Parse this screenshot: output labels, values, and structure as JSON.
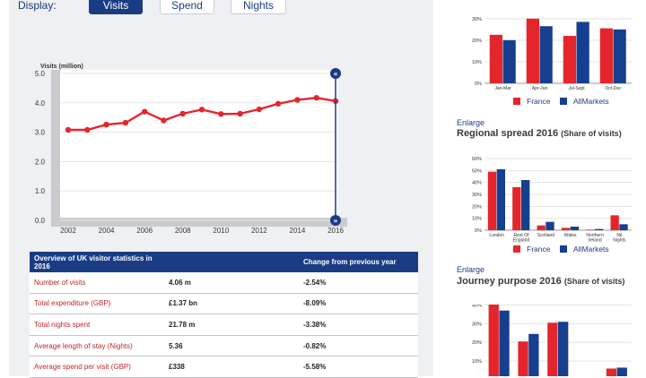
{
  "display": {
    "label": "Display:",
    "tabs": [
      {
        "label": "Visits",
        "active": true
      },
      {
        "label": "Spend",
        "active": false
      },
      {
        "label": "Nights",
        "active": false
      }
    ]
  },
  "chart_data": [
    {
      "type": "line",
      "ylabel": "Visits (million)",
      "x": [
        2002,
        2003,
        2004,
        2005,
        2006,
        2007,
        2008,
        2009,
        2010,
        2011,
        2012,
        2013,
        2014,
        2015,
        2016
      ],
      "xticks": [
        "2002",
        "2004",
        "2006",
        "2008",
        "2010",
        "2012",
        "2014",
        "2016"
      ],
      "yticks": [
        "0.0",
        "1.0",
        "2.0",
        "3.0",
        "4.0",
        "5.0"
      ],
      "ylim": [
        0,
        5
      ],
      "series": [
        {
          "values": [
            3.08,
            3.08,
            3.26,
            3.32,
            3.7,
            3.4,
            3.63,
            3.77,
            3.62,
            3.63,
            3.78,
            3.97,
            4.1,
            4.17,
            4.06
          ],
          "color": "#e4262c"
        }
      ],
      "slider_selected": "2016"
    },
    {
      "type": "bar",
      "categories": [
        "Jan-Mar",
        "Apr-Jun",
        "Jul-Sept",
        "Oct-Dec"
      ],
      "yticks": [
        "0%",
        "10%",
        "20%",
        "30%"
      ],
      "ylim": [
        0,
        32
      ],
      "series": [
        {
          "name": "France",
          "values": [
            22.5,
            30,
            22,
            25.5
          ],
          "color": "#e4262c"
        },
        {
          "name": "AllMarkets",
          "values": [
            20,
            26.5,
            28.5,
            25
          ],
          "color": "#173f8f"
        }
      ]
    },
    {
      "type": "bar",
      "title": "Regional spread 2016",
      "subtitle": "(Share of visits)",
      "categories": [
        "London",
        "Rest Of England",
        "Scotland",
        "Wales",
        "Northern Ireland",
        "Nil Nights"
      ],
      "yticks": [
        "0%",
        "10%",
        "20%",
        "30%",
        "40%",
        "50%",
        "60%"
      ],
      "ylim": [
        0,
        60
      ],
      "series": [
        {
          "name": "France",
          "values": [
            49,
            36,
            4,
            2,
            0.5,
            12.5
          ],
          "color": "#e4262c"
        },
        {
          "name": "AllMarkets",
          "values": [
            51,
            42,
            7,
            3,
            1,
            5
          ],
          "color": "#173f8f"
        }
      ]
    },
    {
      "type": "bar",
      "title": "Journey purpose 2016",
      "subtitle": "(Share of visits)",
      "categories": [
        "",
        "",
        "",
        "",
        ""
      ],
      "yticks": [
        "10%",
        "20%",
        "30%",
        "40%"
      ],
      "ylim": [
        0,
        45
      ],
      "series": [
        {
          "name": "France",
          "values": [
            41.5,
            20.5,
            30.5,
            0,
            6
          ],
          "color": "#e4262c"
        },
        {
          "name": "AllMarkets",
          "values": [
            37,
            24.5,
            31,
            0,
            6.5
          ],
          "color": "#173f8f"
        }
      ]
    }
  ],
  "legend": {
    "france": "France",
    "allmarkets": "AllMarkets",
    "france_color": "#e4262c",
    "allmarkets_color": "#173f8f"
  },
  "table": {
    "headers": [
      "Overview of UK visitor statistics in  2016",
      "",
      "Change from previous year"
    ],
    "rows": [
      {
        "label": "Number of visits",
        "value": "4.06 m",
        "change": "-2.54%"
      },
      {
        "label": "Total expenditure (GBP)",
        "value": "£1.37 bn",
        "change": "-8.09%"
      },
      {
        "label": "Total nights spent",
        "value": "21.78 m",
        "change": "-3.38%"
      },
      {
        "label": "Average length of stay (Nights)",
        "value": "5.36",
        "change": "-0.82%"
      },
      {
        "label": "Average spend per visit (GBP)",
        "value": "£338",
        "change": "-5.58%"
      }
    ]
  },
  "enlarge_label": "Enlarge"
}
